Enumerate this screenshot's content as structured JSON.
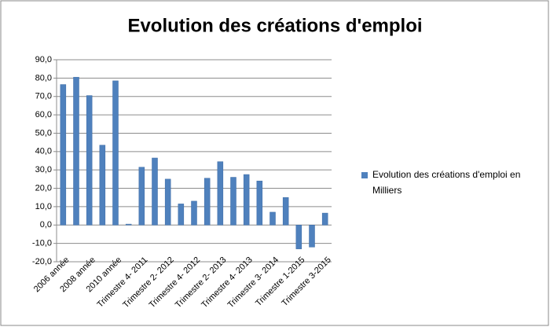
{
  "chart_data": {
    "type": "bar",
    "title": "Evolution des créations d'emploi",
    "categories": [
      "2006 année",
      null,
      "2008 année",
      null,
      "2010 année",
      null,
      "Trimestre 4- 2011",
      null,
      "Trimestre 2- 2012",
      null,
      "Trimestre 4- 2012",
      null,
      "Trimestre 2- 2013",
      null,
      "Trimestre 4- 2013",
      null,
      "Trimestre 3- 2014",
      null,
      "Trimestre 1-2015",
      null,
      "Trimestre 3-2015"
    ],
    "series": [
      {
        "name": "Evolution des créations d'emploi en Milliers",
        "color": "#4f81bd",
        "values": [
          76.5,
          80.5,
          70.5,
          43.5,
          78.5,
          0.5,
          31.5,
          36.5,
          25,
          11.5,
          13,
          25.5,
          34.5,
          26,
          27.5,
          24,
          7,
          15,
          -13,
          -12,
          6.5
        ]
      }
    ],
    "ylim": [
      -20,
      90
    ],
    "yticks": [
      {
        "value": -20,
        "label": "-20,0"
      },
      {
        "value": -10,
        "label": "-10,0"
      },
      {
        "value": 0,
        "label": "0,0"
      },
      {
        "value": 10,
        "label": "10,0"
      },
      {
        "value": 20,
        "label": "20,0"
      },
      {
        "value": 30,
        "label": "30,0"
      },
      {
        "value": 40,
        "label": "40,0"
      },
      {
        "value": 50,
        "label": "50,0"
      },
      {
        "value": 60,
        "label": "60,0"
      },
      {
        "value": 70,
        "label": "70,0"
      },
      {
        "value": 80,
        "label": "80,0"
      },
      {
        "value": 90,
        "label": "90,0"
      }
    ],
    "grid": true,
    "legend": "right"
  }
}
